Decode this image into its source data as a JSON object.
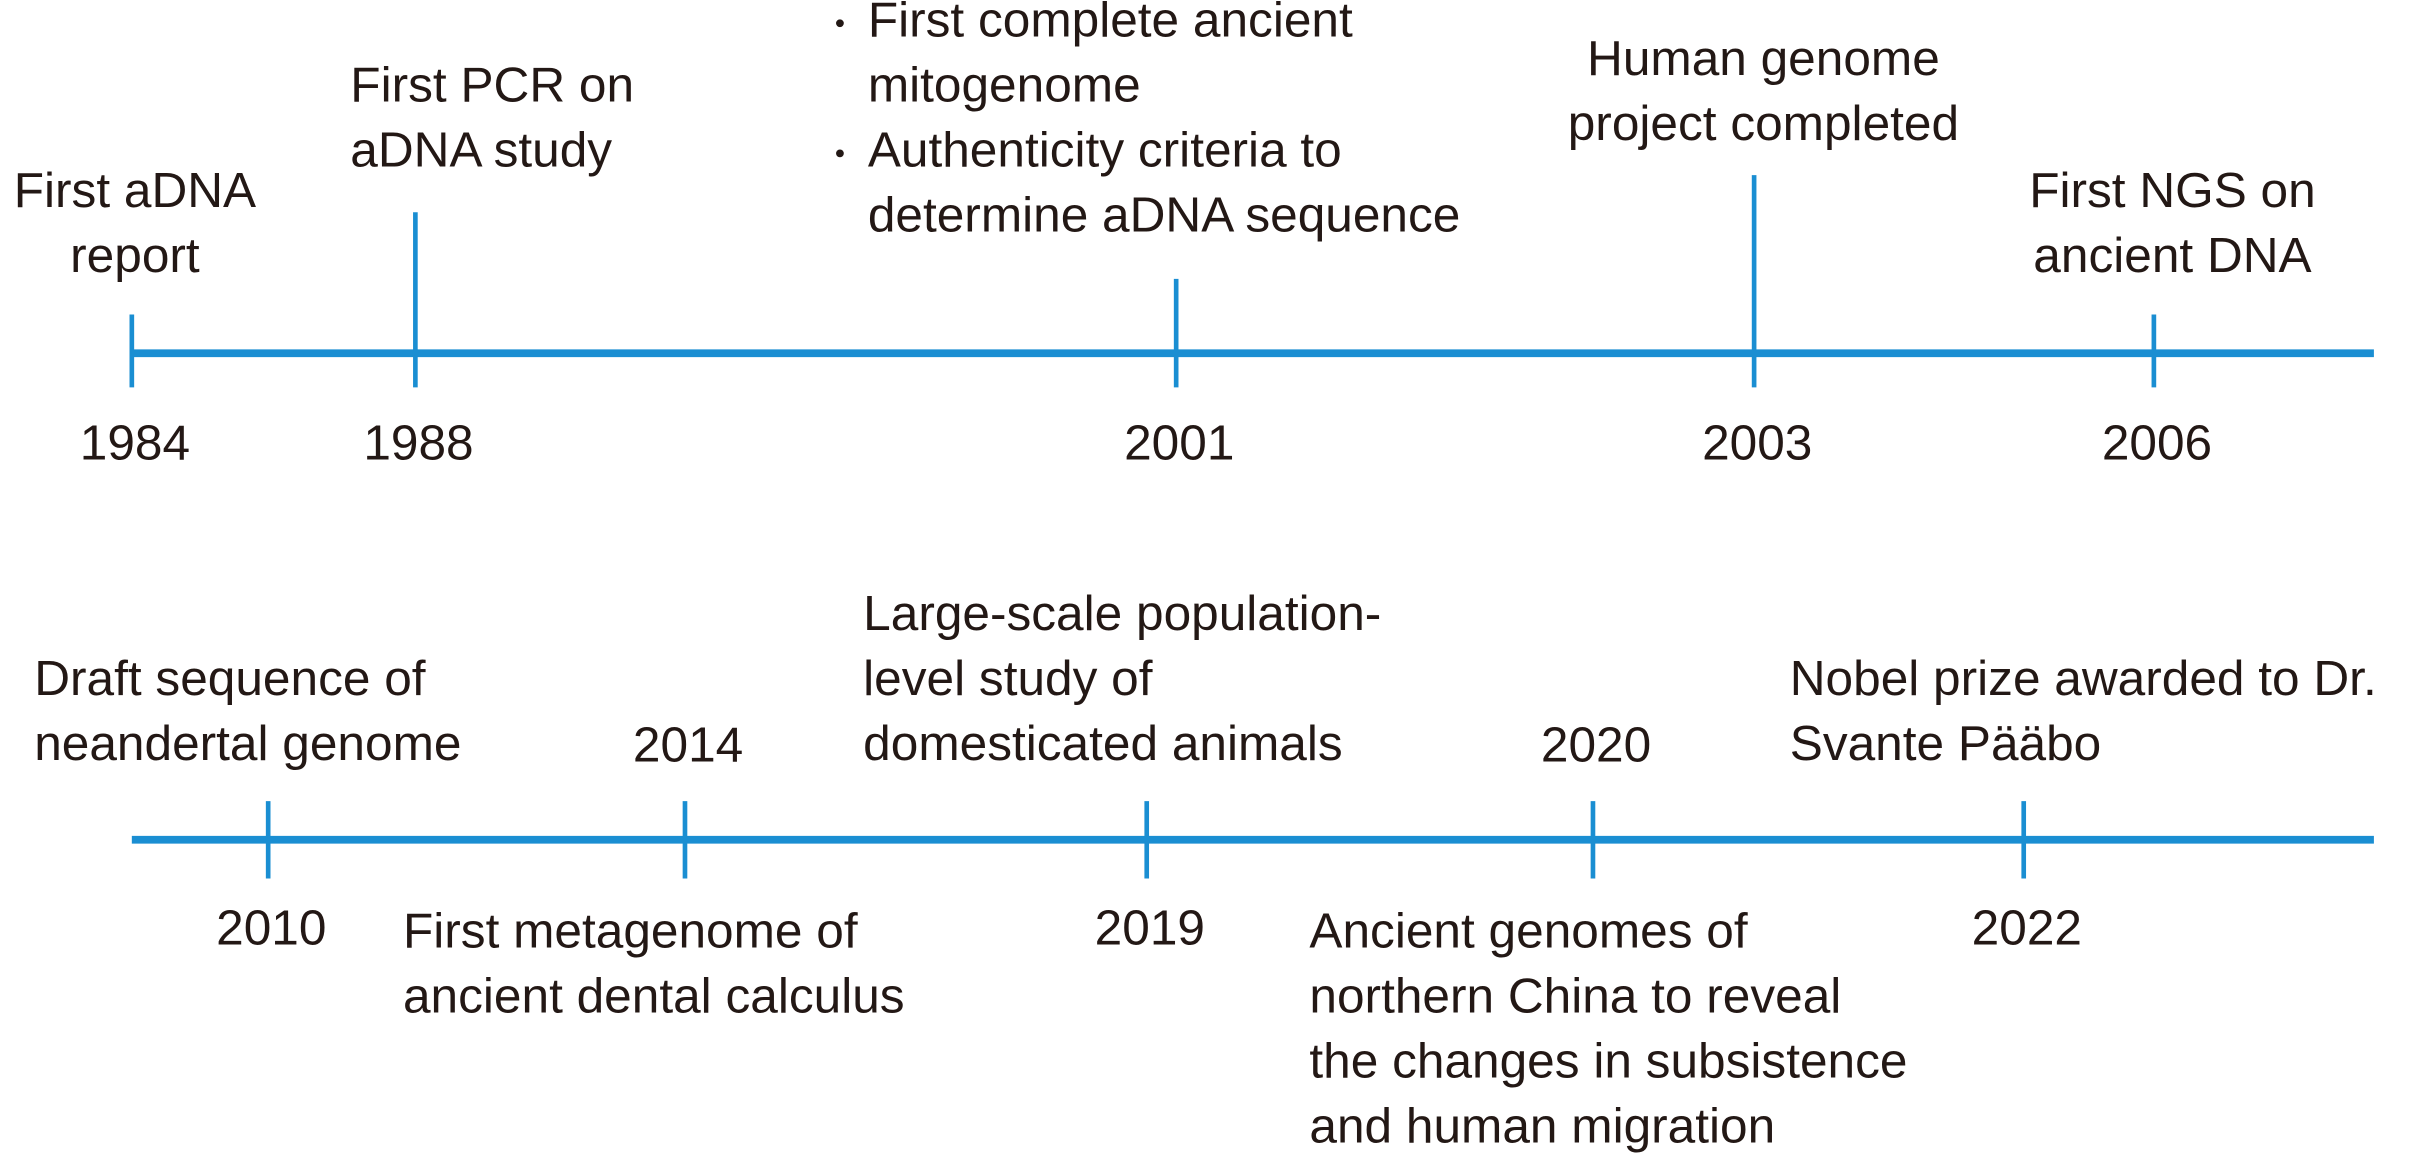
{
  "timeline": {
    "rows": [
      {
        "events": [
          {
            "year": "1984",
            "lines": [
              "First aDNA",
              "report"
            ]
          },
          {
            "year": "1988",
            "lines": [
              "First PCR on",
              "aDNA study"
            ]
          },
          {
            "year": "2001",
            "items": [
              [
                "First complete ancient",
                "mitogenome"
              ],
              [
                "Authenticity criteria to",
                "determine aDNA sequence"
              ]
            ]
          },
          {
            "year": "2003",
            "lines": [
              "Human genome",
              "project completed"
            ]
          },
          {
            "year": "2006",
            "lines": [
              "First NGS on",
              "ancient DNA"
            ]
          }
        ]
      },
      {
        "events": [
          {
            "year": "2010",
            "lines": [
              "Draft sequence of",
              "neandertal genome"
            ]
          },
          {
            "year": "2014",
            "lines": [
              "First metagenome of",
              "ancient dental calculus"
            ]
          },
          {
            "year": "2019",
            "lines": [
              "Large-scale population-",
              "level study of",
              "domesticated animals"
            ]
          },
          {
            "year": "2020",
            "lines": [
              "Ancient genomes of",
              "northern China to reveal",
              "the changes in subsistence",
              "and human migration"
            ]
          },
          {
            "year": "2022",
            "lines": [
              "Nobel prize awarded to Dr.",
              "Svante Pääbo"
            ]
          }
        ]
      }
    ]
  }
}
